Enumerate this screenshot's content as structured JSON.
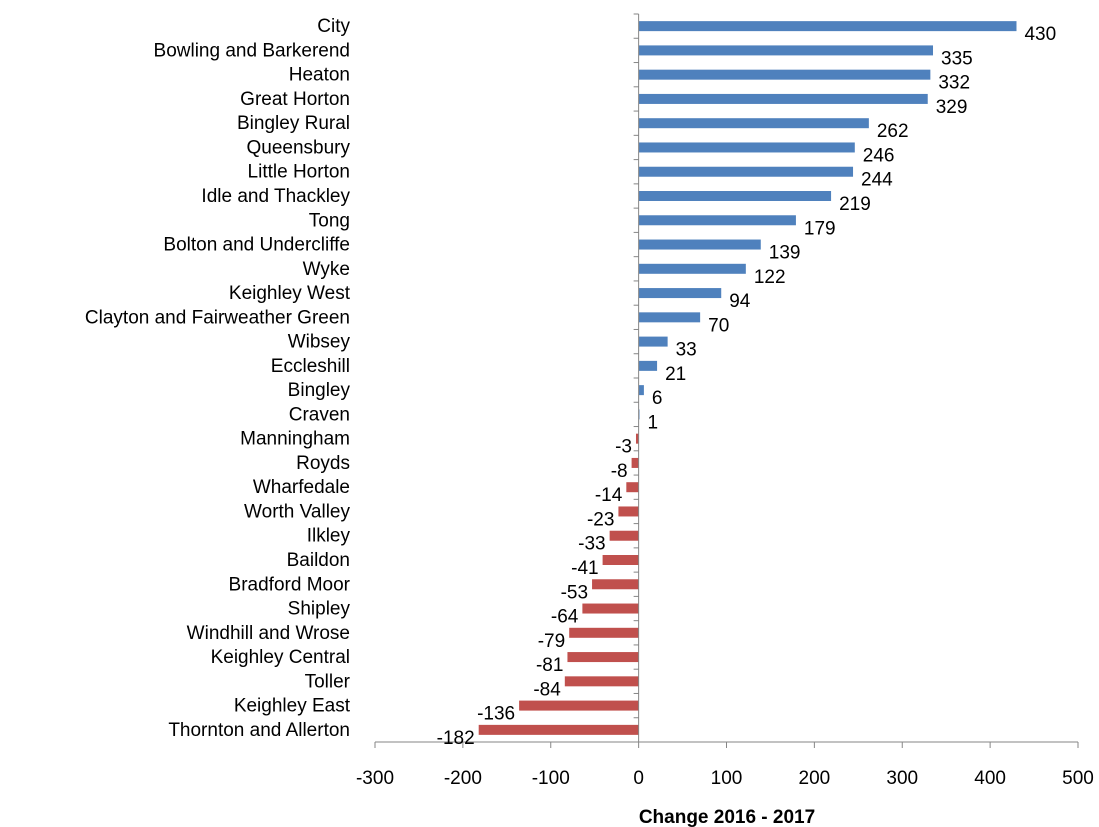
{
  "chart_data": {
    "type": "bar",
    "orientation": "horizontal",
    "title": "",
    "xlabel": "Change 2016 - 2017",
    "ylabel": "",
    "xlim": [
      -300,
      500
    ],
    "xticks": [
      -300,
      -200,
      -100,
      0,
      100,
      200,
      300,
      400,
      500
    ],
    "grid": false,
    "legend": "none",
    "colors": {
      "positive": "#4F81BD",
      "negative": "#C0504D"
    },
    "categories": [
      "City",
      "Bowling and Barkerend",
      "Heaton",
      "Great Horton",
      "Bingley Rural",
      "Queensbury",
      "Little Horton",
      "Idle and Thackley",
      "Tong",
      "Bolton and Undercliffe",
      "Wyke",
      "Keighley West",
      "Clayton and Fairweather Green",
      "Wibsey",
      "Eccleshill",
      "Bingley",
      "Craven",
      "Manningham",
      "Royds",
      "Wharfedale",
      "Worth Valley",
      "Ilkley",
      "Baildon",
      "Bradford Moor",
      "Shipley",
      "Windhill and Wrose",
      "Keighley Central",
      "Toller",
      "Keighley East",
      "Thornton and Allerton"
    ],
    "values": [
      430,
      335,
      332,
      329,
      262,
      246,
      244,
      219,
      179,
      139,
      122,
      94,
      70,
      33,
      21,
      6,
      1,
      -3,
      -8,
      -14,
      -23,
      -33,
      -41,
      -53,
      -64,
      -79,
      -81,
      -84,
      -136,
      -182
    ]
  }
}
